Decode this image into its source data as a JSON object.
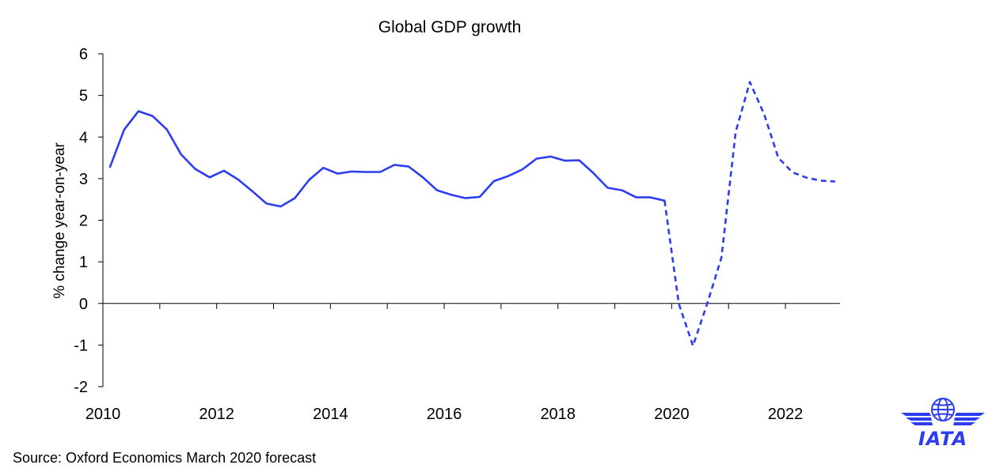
{
  "chart_data": {
    "type": "line",
    "title": "Global GDP growth",
    "xlabel": "",
    "ylabel": "% change year-on-year",
    "x_tick_labels": [
      "2010",
      "2012",
      "2014",
      "2016",
      "2018",
      "2020",
      "2022"
    ],
    "y_tick_labels": [
      "-2",
      "-1",
      "0",
      "1",
      "2",
      "3",
      "4",
      "5",
      "6"
    ],
    "ylim": [
      -2,
      6
    ],
    "xlim": [
      2010.0,
      2022.96
    ],
    "grid": false,
    "legend": "none",
    "line_color": "#2c3df0",
    "series": [
      {
        "style": "solid",
        "x": [
          2010.125,
          2010.375,
          2010.625,
          2010.875,
          2011.125,
          2011.375,
          2011.625,
          2011.875,
          2012.125,
          2012.375,
          2012.625,
          2012.875,
          2013.125,
          2013.375,
          2013.625,
          2013.875,
          2014.125,
          2014.375,
          2014.625,
          2014.875,
          2015.125,
          2015.375,
          2015.625,
          2015.875,
          2016.125,
          2016.375,
          2016.625,
          2016.875,
          2017.125,
          2017.375,
          2017.625,
          2017.875,
          2018.125,
          2018.375,
          2018.625,
          2018.875,
          2019.125,
          2019.375,
          2019.625,
          2019.875
        ],
        "y": [
          3.28,
          4.18,
          4.62,
          4.5,
          4.18,
          3.58,
          3.23,
          3.03,
          3.19,
          2.98,
          2.7,
          2.4,
          2.33,
          2.53,
          2.97,
          3.26,
          3.12,
          3.17,
          3.16,
          3.16,
          3.33,
          3.29,
          3.03,
          2.72,
          2.61,
          2.53,
          2.56,
          2.94,
          3.06,
          3.22,
          3.48,
          3.53,
          3.43,
          3.44,
          3.13,
          2.78,
          2.72,
          2.55,
          2.55,
          2.47
        ]
      },
      {
        "style": "dashed",
        "x": [
          2019.875,
          2020.125,
          2020.375,
          2020.625,
          2020.875,
          2021.125,
          2021.375,
          2021.625,
          2021.875,
          2022.125,
          2022.375,
          2022.625,
          2022.875
        ],
        "y": [
          2.47,
          0.0,
          -1.02,
          0.0,
          1.1,
          4.12,
          5.32,
          4.55,
          3.5,
          3.15,
          3.02,
          2.95,
          2.93
        ]
      }
    ]
  },
  "source_text": "Source: Oxford Economics March 2020 forecast",
  "logo": {
    "text": "IATA",
    "color": "#2c3df0"
  }
}
